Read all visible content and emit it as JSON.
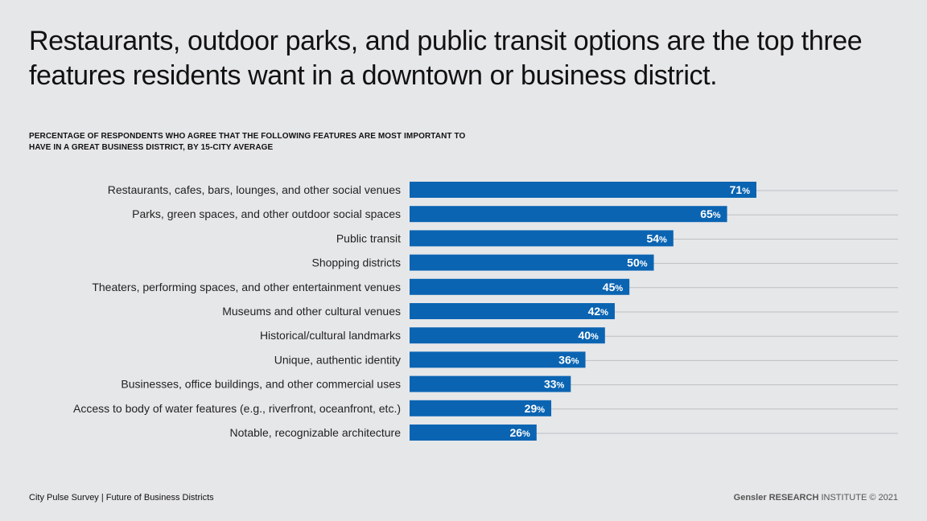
{
  "headline": "Restaurants, outdoor parks, and public transit options are the top three features residents want in a downtown or business district.",
  "chart_data": {
    "type": "bar",
    "orientation": "horizontal",
    "title": "PERCENTAGE OF RESPONDENTS WHO AGREE THAT THE FOLLOWING FEATURES ARE MOST IMPORTANT TO HAVE IN A GREAT BUSINESS DISTRICT, BY 15-CITY AVERAGE",
    "categories": [
      "Restaurants, cafes, bars, lounges, and other social venues",
      "Parks, green spaces, and other outdoor social spaces",
      "Public transit",
      "Shopping districts",
      "Theaters, performing spaces, and other entertainment venues",
      "Museums and other cultural venues",
      "Historical/cultural landmarks",
      "Unique, authentic identity",
      "Businesses, office buildings, and other commercial uses",
      "Access to body of water features (e.g., riverfront, oceanfront, etc.)",
      "Notable, recognizable architecture"
    ],
    "values": [
      71,
      65,
      54,
      50,
      45,
      42,
      40,
      36,
      33,
      29,
      26
    ],
    "value_suffix": "%",
    "bar_color": "#0a64b2",
    "grid_color": "#bdbfc2",
    "grid": true,
    "legend": "none"
  },
  "footer": {
    "left": "City Pulse Survey  |  Future of Business Districts",
    "brand": "Gensler RESEARCH",
    "institute": " INSTITUTE",
    "copyright": " © 2021"
  }
}
